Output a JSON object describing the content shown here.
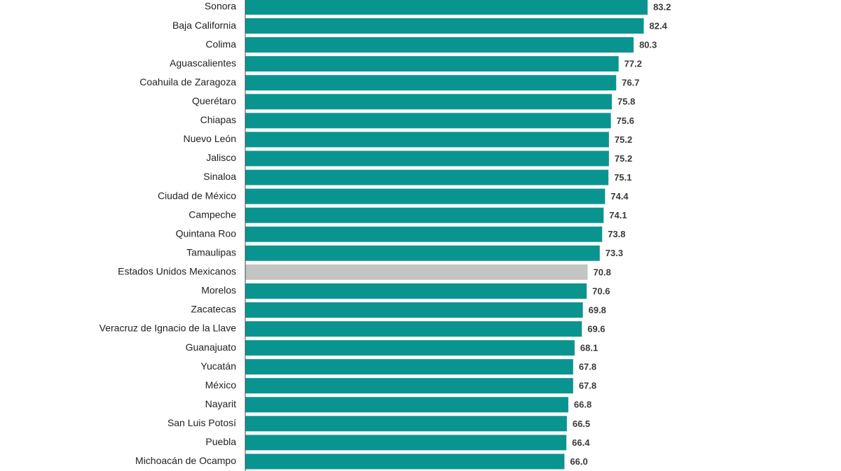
{
  "chart_data": {
    "type": "bar",
    "orientation": "horizontal",
    "title": "",
    "xlabel": "",
    "ylabel": "",
    "xlim": [
      0,
      85
    ],
    "grid": false,
    "legend": "none",
    "colors": {
      "bar": "#0a9490",
      "highlight": "#c4c4c4",
      "axis": "#444444",
      "label": "#222222",
      "value_label": "#3a3a3a"
    },
    "highlight_category": "Estados Unidos Mexicanos",
    "value_format": "one-decimal",
    "categories": [
      "Sonora",
      "Baja California",
      "Colima",
      "Aguascalientes",
      "Coahuila de Zaragoza",
      "Querétaro",
      "Chiapas",
      "Nuevo León",
      "Jalisco",
      "Sinaloa",
      "Ciudad de México",
      "Campeche",
      "Quintana Roo",
      "Tamaulipas",
      "Estados Unidos Mexicanos",
      "Morelos",
      "Zacatecas",
      "Veracruz de Ignacio de la Llave",
      "Guanajuato",
      "Yucatán",
      "México",
      "Nayarit",
      "San Luis Potosí",
      "Puebla",
      "Michoacán de Ocampo"
    ],
    "values": [
      83.2,
      82.4,
      80.3,
      77.2,
      76.7,
      75.8,
      75.6,
      75.2,
      75.2,
      75.1,
      74.4,
      74.1,
      73.8,
      73.3,
      70.8,
      70.6,
      69.8,
      69.6,
      68.1,
      67.8,
      67.8,
      66.8,
      66.5,
      66.4,
      66.0
    ]
  }
}
